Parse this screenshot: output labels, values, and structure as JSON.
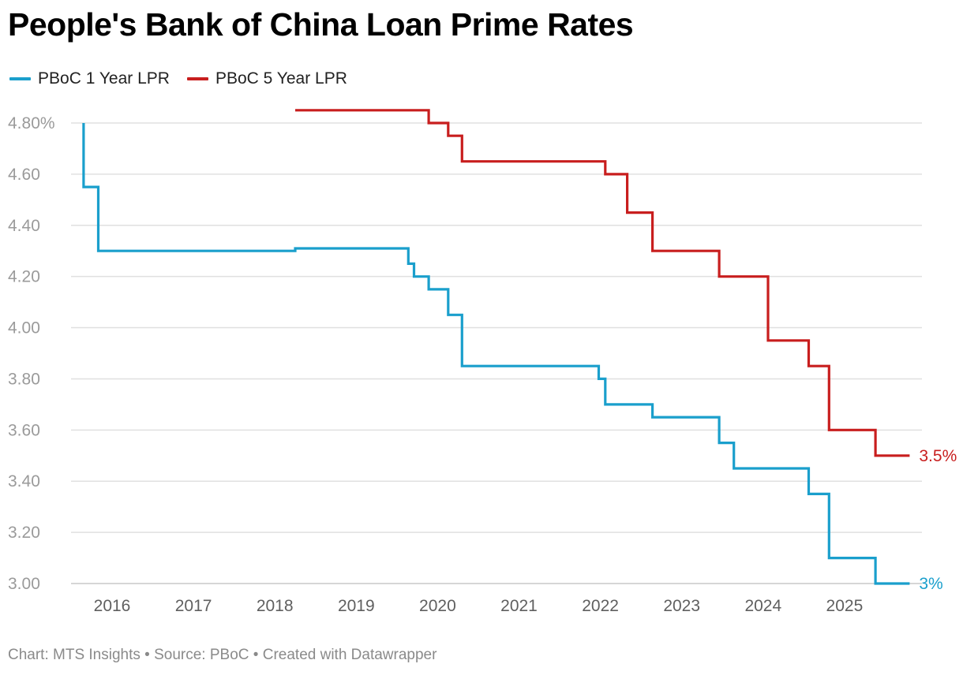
{
  "title": "People's Bank of China Loan Prime Rates",
  "footer": {
    "chart_credit": "Chart: MTS Insights",
    "sep1": " • ",
    "source": "Source: PBoC",
    "sep2": " • ",
    "created": "Created with Datawrapper"
  },
  "colors": {
    "one_year": "#1a9fcc",
    "five_year": "#c81e1e",
    "grid": "#e0e0e0"
  },
  "chart_data": {
    "type": "line",
    "step": true,
    "title": "People's Bank of China Loan Prime Rates",
    "xlabel": "",
    "ylabel": "",
    "xlim": [
      2015.6,
      2025.9
    ],
    "ylim": [
      3.0,
      4.8
    ],
    "y_ticks": [
      {
        "value": 4.8,
        "label": "4.80%"
      },
      {
        "value": 4.6,
        "label": "4.60"
      },
      {
        "value": 4.4,
        "label": "4.40"
      },
      {
        "value": 4.2,
        "label": "4.20"
      },
      {
        "value": 4.0,
        "label": "4.00"
      },
      {
        "value": 3.8,
        "label": "3.80"
      },
      {
        "value": 3.6,
        "label": "3.60"
      },
      {
        "value": 3.4,
        "label": "3.40"
      },
      {
        "value": 3.2,
        "label": "3.20"
      },
      {
        "value": 3.0,
        "label": "3.00"
      }
    ],
    "x_ticks": [
      {
        "value": 2016,
        "label": "2016"
      },
      {
        "value": 2017,
        "label": "2017"
      },
      {
        "value": 2018,
        "label": "2018"
      },
      {
        "value": 2019,
        "label": "2019"
      },
      {
        "value": 2020,
        "label": "2020"
      },
      {
        "value": 2021,
        "label": "2021"
      },
      {
        "value": 2022,
        "label": "2022"
      },
      {
        "value": 2023,
        "label": "2023"
      },
      {
        "value": 2024,
        "label": "2024"
      },
      {
        "value": 2025,
        "label": "2025"
      }
    ],
    "grid": true,
    "legend_position": "top-left",
    "series": [
      {
        "name": "PBoC 1 Year LPR",
        "color": "#1a9fcc",
        "end_label": "3%",
        "points": [
          [
            2015.65,
            4.8
          ],
          [
            2015.65,
            4.55
          ],
          [
            2015.83,
            4.55
          ],
          [
            2015.83,
            4.3
          ],
          [
            2018.25,
            4.3
          ],
          [
            2018.25,
            4.31
          ],
          [
            2019.64,
            4.31
          ],
          [
            2019.64,
            4.25
          ],
          [
            2019.71,
            4.25
          ],
          [
            2019.71,
            4.2
          ],
          [
            2019.89,
            4.2
          ],
          [
            2019.89,
            4.15
          ],
          [
            2020.13,
            4.15
          ],
          [
            2020.13,
            4.05
          ],
          [
            2020.3,
            4.05
          ],
          [
            2020.3,
            3.85
          ],
          [
            2021.98,
            3.85
          ],
          [
            2021.98,
            3.8
          ],
          [
            2022.06,
            3.8
          ],
          [
            2022.06,
            3.7
          ],
          [
            2022.64,
            3.7
          ],
          [
            2022.64,
            3.65
          ],
          [
            2023.46,
            3.65
          ],
          [
            2023.46,
            3.55
          ],
          [
            2023.64,
            3.55
          ],
          [
            2023.64,
            3.45
          ],
          [
            2024.56,
            3.45
          ],
          [
            2024.56,
            3.35
          ],
          [
            2024.81,
            3.35
          ],
          [
            2024.81,
            3.1
          ],
          [
            2025.38,
            3.1
          ],
          [
            2025.38,
            3.0
          ],
          [
            2025.8,
            3.0
          ]
        ]
      },
      {
        "name": "PBoC 5 Year LPR",
        "color": "#c81e1e",
        "end_label": "3.5%",
        "points": [
          [
            2018.25,
            4.85
          ],
          [
            2019.89,
            4.85
          ],
          [
            2019.89,
            4.8
          ],
          [
            2020.13,
            4.8
          ],
          [
            2020.13,
            4.75
          ],
          [
            2020.3,
            4.75
          ],
          [
            2020.3,
            4.65
          ],
          [
            2022.06,
            4.65
          ],
          [
            2022.06,
            4.6
          ],
          [
            2022.33,
            4.6
          ],
          [
            2022.33,
            4.45
          ],
          [
            2022.64,
            4.45
          ],
          [
            2022.64,
            4.3
          ],
          [
            2023.46,
            4.3
          ],
          [
            2023.46,
            4.2
          ],
          [
            2024.06,
            4.2
          ],
          [
            2024.06,
            3.95
          ],
          [
            2024.56,
            3.95
          ],
          [
            2024.56,
            3.85
          ],
          [
            2024.81,
            3.85
          ],
          [
            2024.81,
            3.6
          ],
          [
            2025.38,
            3.6
          ],
          [
            2025.38,
            3.5
          ],
          [
            2025.8,
            3.5
          ]
        ]
      }
    ]
  }
}
